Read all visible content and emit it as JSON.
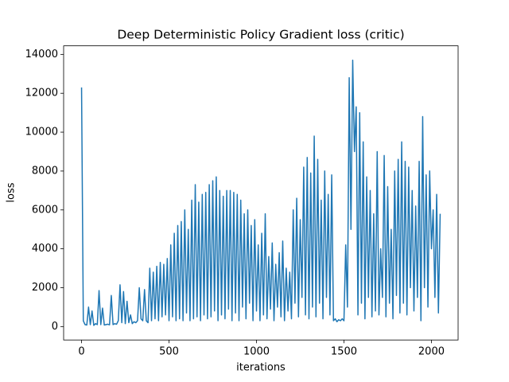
{
  "chart_data": {
    "type": "line",
    "title": "Deep Deterministic Policy Gradient loss (critic)",
    "xlabel": "iterations",
    "ylabel": "loss",
    "x": [
      0,
      10,
      20,
      30,
      40,
      50,
      60,
      70,
      80,
      90,
      100,
      110,
      120,
      130,
      140,
      150,
      160,
      170,
      180,
      190,
      200,
      210,
      220,
      230,
      240,
      250,
      260,
      270,
      280,
      290,
      300,
      310,
      320,
      330,
      340,
      350,
      360,
      370,
      380,
      390,
      400,
      410,
      420,
      430,
      440,
      450,
      460,
      470,
      480,
      490,
      500,
      510,
      520,
      530,
      540,
      550,
      560,
      570,
      580,
      590,
      600,
      610,
      620,
      630,
      640,
      650,
      660,
      670,
      680,
      690,
      700,
      710,
      720,
      730,
      740,
      750,
      760,
      770,
      780,
      790,
      800,
      810,
      820,
      830,
      840,
      850,
      860,
      870,
      880,
      890,
      900,
      910,
      920,
      930,
      940,
      950,
      960,
      970,
      980,
      990,
      1000,
      1010,
      1020,
      1030,
      1040,
      1050,
      1060,
      1070,
      1080,
      1090,
      1100,
      1110,
      1120,
      1130,
      1140,
      1150,
      1160,
      1170,
      1180,
      1190,
      1200,
      1210,
      1220,
      1230,
      1240,
      1250,
      1260,
      1270,
      1280,
      1290,
      1300,
      1310,
      1320,
      1330,
      1340,
      1350,
      1360,
      1370,
      1380,
      1390,
      1400,
      1410,
      1420,
      1430,
      1440,
      1450,
      1460,
      1470,
      1480,
      1490,
      1500,
      1510,
      1520,
      1530,
      1540,
      1550,
      1560,
      1570,
      1580,
      1590,
      1600,
      1610,
      1620,
      1630,
      1640,
      1650,
      1660,
      1670,
      1680,
      1690,
      1700,
      1710,
      1720,
      1730,
      1740,
      1750,
      1760,
      1770,
      1780,
      1790,
      1800,
      1810,
      1820,
      1830,
      1840,
      1850,
      1860,
      1870,
      1880,
      1890,
      1900,
      1910,
      1920,
      1930,
      1940,
      1950,
      1960,
      1970,
      1980,
      1990,
      2000,
      2010,
      2020,
      2030,
      2040,
      2050
    ],
    "series": [
      {
        "color": "#1f77b4",
        "values": [
          12300,
          300,
          100,
          80,
          1000,
          100,
          800,
          60,
          150,
          100,
          1850,
          100,
          950,
          80,
          100,
          120,
          90,
          1600,
          100,
          150,
          120,
          300,
          2150,
          200,
          1800,
          150,
          1300,
          200,
          600,
          150,
          250,
          200,
          300,
          2000,
          400,
          300,
          1900,
          300,
          200,
          3000,
          300,
          2800,
          400,
          3100,
          300,
          3300,
          500,
          3200,
          600,
          3500,
          300,
          4200,
          500,
          4800,
          300,
          5200,
          400,
          5400,
          300,
          6000,
          700,
          5000,
          300,
          6500,
          400,
          7300,
          500,
          6400,
          300,
          6800,
          600,
          6900,
          400,
          7300,
          500,
          7500,
          800,
          7700,
          300,
          7000,
          600,
          6700,
          400,
          7000,
          900,
          7000,
          300,
          6900,
          700,
          6800,
          300,
          6500,
          1000,
          5800,
          400,
          6000,
          1200,
          5200,
          300,
          5500,
          800,
          4200,
          300,
          4800,
          600,
          5800,
          400,
          3600,
          900,
          4300,
          300,
          3200,
          1000,
          3800,
          500,
          4400,
          300,
          3000,
          800,
          2800,
          400,
          6000,
          1200,
          6600,
          500,
          5500,
          1500,
          8200,
          600,
          8700,
          400,
          7900,
          1000,
          9800,
          500,
          8600,
          1200,
          6500,
          400,
          8000,
          1500,
          6800,
          600,
          7800,
          300,
          400,
          250,
          350,
          300,
          400,
          300,
          4200,
          1000,
          12800,
          5000,
          13700,
          9000,
          11300,
          600,
          11000,
          1200,
          9500,
          400,
          7700,
          1500,
          7000,
          500,
          5800,
          800,
          9000,
          600,
          4000,
          1500,
          8800,
          500,
          7200,
          1200,
          5000,
          400,
          8000,
          1600,
          8600,
          700,
          9500,
          1200,
          8500,
          600,
          8200,
          2000,
          7000,
          800,
          6200,
          1500,
          8500,
          300,
          10800,
          2000,
          7800,
          1000,
          8000,
          4000,
          6000,
          1500,
          6800,
          700,
          5800
        ]
      }
    ],
    "xlim": [
      -102.5,
      2152.5
    ],
    "ylim": [
      -690,
      14440
    ],
    "xticks": [
      0,
      500,
      1000,
      1500,
      2000
    ],
    "yticks": [
      0,
      2000,
      4000,
      6000,
      8000,
      10000,
      12000,
      14000
    ]
  }
}
